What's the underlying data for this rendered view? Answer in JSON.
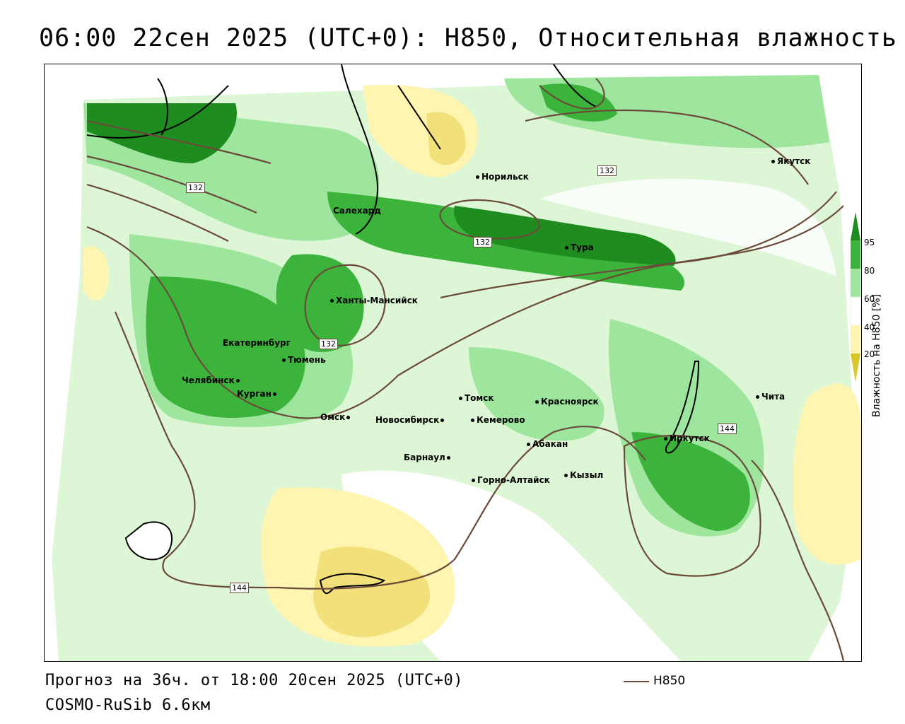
{
  "title": "06:00 22сен 2025 (UTC+0): Н850, Относительная влажность",
  "footer": {
    "forecast": "Прогноз на 36ч. от 18:00 20сен 2025 (UTC+0)",
    "model": "COSMO-RuSib 6.6км"
  },
  "legend": {
    "isoline_label": "H850",
    "isoline_color": "#6b4a3a"
  },
  "colorbar": {
    "title": "Влажность на Н850 [%]",
    "ticks": [
      "95",
      "80",
      "60",
      "40",
      "20"
    ],
    "colors": [
      "#1e8c1e",
      "#3cb43c",
      "#9ee59e",
      "#d9f5d0",
      "#ffffff",
      "#fff5b0",
      "#f2e07a",
      "#d8c82a"
    ]
  },
  "isoline_labels": [
    "132",
    "132",
    "132",
    "132",
    "144",
    "144"
  ],
  "cities": [
    "Норильск",
    "Якутск",
    "Салехард",
    "Тура",
    "Ханты-Мансийск",
    "Екатеринбург",
    "Тюмень",
    "Челябинск",
    "Курган",
    "Омск",
    "Томск",
    "Красноярск",
    "Новосибирск",
    "Кемерово",
    "Абакан",
    "Барнаул",
    "Горно-Алтайск",
    "Кызыл",
    "Иркутск",
    "Чита"
  ]
}
